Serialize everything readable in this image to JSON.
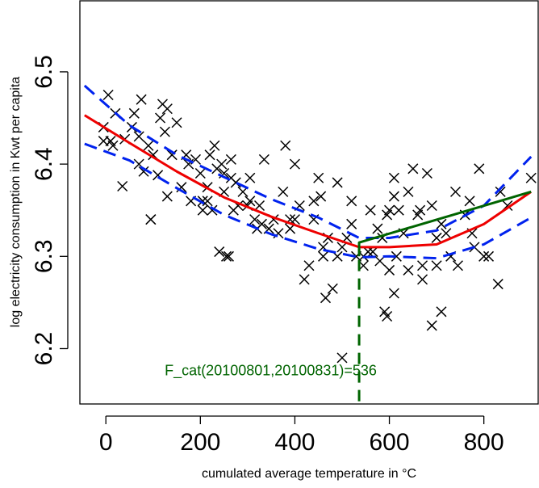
{
  "chart_data": {
    "type": "scatter",
    "title": "",
    "xlabel": "cumulated average temperature in °C",
    "ylabel": "log electricity consumption in Kwt per capita",
    "xlim": [
      -55,
      915
    ],
    "ylim": [
      6.14,
      6.577
    ],
    "x_ticks": [
      0,
      200,
      400,
      600,
      800
    ],
    "x_tick_labels": [
      "0",
      "200",
      "400",
      "600",
      "800"
    ],
    "y_ticks": [
      6.2,
      6.3,
      6.4,
      6.5
    ],
    "y_tick_labels": [
      "6.2",
      "6.3",
      "6.4",
      "6.5"
    ],
    "grid": false,
    "colors": {
      "points": "#000000",
      "fit": "#ee0000",
      "band": "#0022ee",
      "segment": "#006400",
      "annotation": "#006400"
    },
    "annotation": {
      "text": "F_cat(20100801,20100831)=536",
      "x": 210,
      "y": 6.171
    },
    "threshold": {
      "x": 536,
      "y_from": 6.143,
      "y_to": 6.31
    },
    "series": [
      {
        "kind": "points",
        "marker": "x",
        "x": [
          -5,
          5,
          10,
          20,
          35,
          -5,
          40,
          55,
          60,
          70,
          75,
          80,
          90,
          95,
          100,
          110,
          120,
          130,
          140,
          150,
          160,
          170,
          180,
          190,
          200,
          205,
          215,
          220,
          225,
          235,
          240,
          250,
          255,
          265,
          270,
          275,
          280,
          290,
          300,
          305,
          315,
          325,
          335,
          345,
          355,
          365,
          375,
          380,
          390,
          400,
          410,
          420,
          430,
          440,
          450,
          460,
          465,
          480,
          490,
          510,
          520,
          530,
          545,
          555,
          560,
          575,
          585,
          595,
          600,
          610,
          620,
          630,
          640,
          650,
          660,
          670,
          680,
          690,
          700,
          710,
          720,
          730,
          740,
          760,
          770,
          790,
          800,
          810,
          830,
          850,
          900,
          95,
          115,
          205,
          230,
          245,
          260,
          330,
          400,
          440,
          460,
          470,
          500,
          520,
          545,
          565,
          590,
          610,
          640,
          670,
          710,
          745,
          775,
          835,
          125,
          175,
          215,
          265,
          305,
          455,
          490,
          595,
          610,
          700,
          780,
          250,
          320,
          390,
          580,
          615,
          665,
          690,
          500,
          600,
          15,
          70,
          130
        ],
        "y": [
          6.425,
          6.475,
          6.425,
          6.455,
          6.376,
          6.44,
          6.427,
          6.44,
          6.455,
          6.4,
          6.47,
          6.392,
          6.42,
          6.34,
          6.41,
          6.388,
          6.465,
          6.365,
          6.41,
          6.445,
          6.375,
          6.41,
          6.36,
          6.405,
          6.39,
          6.35,
          6.36,
          6.41,
          6.35,
          6.395,
          6.305,
          6.37,
          6.3,
          6.385,
          6.35,
          6.38,
          6.355,
          6.37,
          6.355,
          6.36,
          6.34,
          6.355,
          6.405,
          6.33,
          6.34,
          6.325,
          6.37,
          6.42,
          6.33,
          6.34,
          6.355,
          6.275,
          6.29,
          6.36,
          6.385,
          6.3,
          6.255,
          6.265,
          6.3,
          6.32,
          6.36,
          6.3,
          6.3,
          6.305,
          6.35,
          6.33,
          6.32,
          6.345,
          6.285,
          6.385,
          6.35,
          6.325,
          6.37,
          6.395,
          6.345,
          6.29,
          6.39,
          6.355,
          6.29,
          6.335,
          6.325,
          6.3,
          6.37,
          6.345,
          6.36,
          6.395,
          6.3,
          6.3,
          6.27,
          6.355,
          6.385,
          6.34,
          6.45,
          6.36,
          6.42,
          6.4,
          6.3,
          6.335,
          6.4,
          6.34,
          6.31,
          6.32,
          6.31,
          6.335,
          6.29,
          6.305,
          6.24,
          6.365,
          6.285,
          6.275,
          6.24,
          6.29,
          6.325,
          6.37,
          6.435,
          6.4,
          6.375,
          6.405,
          6.385,
          6.365,
          6.38,
          6.235,
          6.26,
          6.32,
          6.31,
          6.39,
          6.33,
          6.34,
          6.295,
          6.3,
          6.35,
          6.225,
          6.19,
          6.35,
          6.42,
          6.43,
          6.46
        ]
      },
      {
        "kind": "fit",
        "style": "solid",
        "x": [
          -45,
          50,
          150,
          250,
          350,
          450,
          536,
          600,
          700,
          800,
          900
        ],
        "y": [
          6.453,
          6.423,
          6.392,
          6.364,
          6.343,
          6.325,
          6.31,
          6.31,
          6.313,
          6.335,
          6.37
        ]
      },
      {
        "kind": "band-upper",
        "style": "dashed",
        "x": [
          -45,
          50,
          150,
          250,
          350,
          450,
          536,
          600,
          700,
          800,
          900
        ],
        "y": [
          6.485,
          6.442,
          6.41,
          6.386,
          6.362,
          6.342,
          6.32,
          6.32,
          6.328,
          6.355,
          6.408
        ]
      },
      {
        "kind": "band-lower",
        "style": "dashed",
        "x": [
          -45,
          50,
          150,
          250,
          350,
          450,
          536,
          600,
          700,
          800,
          900
        ],
        "y": [
          6.422,
          6.404,
          6.374,
          6.345,
          6.324,
          6.308,
          6.299,
          6.3,
          6.298,
          6.313,
          6.342
        ]
      },
      {
        "kind": "segment",
        "style": "solid",
        "x": [
          536,
          536,
          900
        ],
        "y": [
          6.3,
          6.315,
          6.37
        ]
      }
    ]
  }
}
